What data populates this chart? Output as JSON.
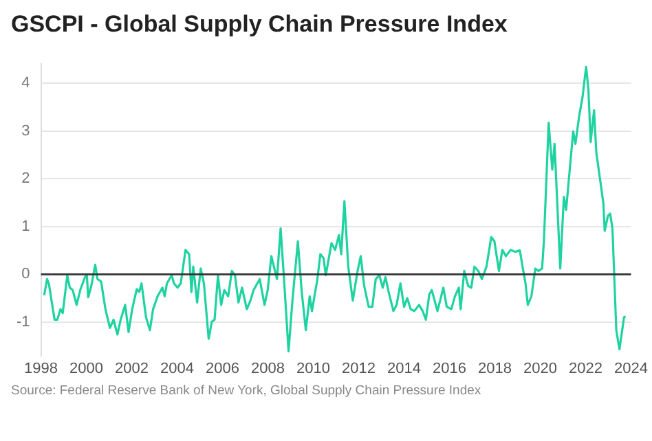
{
  "chart_data": {
    "type": "line",
    "title": "GSCPI - Global Supply Chain Pressure Index",
    "annotations": [
      "Source: Federal Reserve Bank of New York, Global Supply Chain Pressure Index"
    ],
    "x": [
      1998.14,
      1998.27,
      1998.35,
      1998.6,
      1998.72,
      1998.86,
      1998.96,
      1999.16,
      1999.27,
      1999.4,
      1999.57,
      1999.73,
      1999.94,
      2000.02,
      2000.08,
      2000.22,
      2000.39,
      2000.49,
      2000.65,
      2000.84,
      2001.04,
      2001.2,
      2001.37,
      2001.51,
      2001.71,
      2001.86,
      2002.02,
      2002.22,
      2002.33,
      2002.43,
      2002.63,
      2002.8,
      2002.94,
      2003.14,
      2003.35,
      2003.45,
      2003.55,
      2003.76,
      2003.86,
      2004.02,
      2004.16,
      2004.37,
      2004.53,
      2004.63,
      2004.71,
      2004.88,
      2005.04,
      2005.18,
      2005.39,
      2005.53,
      2005.65,
      2005.8,
      2005.94,
      2006.08,
      2006.25,
      2006.41,
      2006.55,
      2006.7,
      2006.86,
      2007.07,
      2007.23,
      2007.37,
      2007.64,
      2007.85,
      2007.99,
      2008.15,
      2008.4,
      2008.56,
      2008.71,
      2008.91,
      2009.08,
      2009.32,
      2009.49,
      2009.67,
      2009.84,
      2009.94,
      2010.18,
      2010.31,
      2010.45,
      2010.55,
      2010.8,
      2010.96,
      2011.13,
      2011.23,
      2011.37,
      2011.54,
      2011.74,
      2011.95,
      2012.09,
      2012.24,
      2012.44,
      2012.6,
      2012.75,
      2012.91,
      2013.06,
      2013.18,
      2013.32,
      2013.53,
      2013.67,
      2013.84,
      2014.0,
      2014.14,
      2014.29,
      2014.45,
      2014.66,
      2014.82,
      2014.96,
      2015.11,
      2015.22,
      2015.47,
      2015.73,
      2015.88,
      2016.08,
      2016.24,
      2016.41,
      2016.49,
      2016.65,
      2016.82,
      2016.96,
      2017.1,
      2017.27,
      2017.43,
      2017.63,
      2017.84,
      2017.98,
      2018.18,
      2018.33,
      2018.49,
      2018.69,
      2018.9,
      2019.1,
      2019.22,
      2019.35,
      2019.45,
      2019.61,
      2019.78,
      2019.92,
      2020.08,
      2020.16,
      2020.37,
      2020.53,
      2020.63,
      2020.88,
      2021.04,
      2021.14,
      2021.45,
      2021.55,
      2021.71,
      2021.86,
      2022.02,
      2022.12,
      2022.22,
      2022.37,
      2022.47,
      2022.78,
      2022.84,
      2022.98,
      2023.08,
      2023.18,
      2023.35,
      2023.49,
      2023.69,
      2023.76
    ],
    "series": [
      {
        "color": "#1fd3a1",
        "values": [
          -0.44,
          -0.1,
          -0.2,
          -0.95,
          -0.95,
          -0.73,
          -0.81,
          -0.02,
          -0.28,
          -0.33,
          -0.64,
          -0.33,
          -0.06,
          0,
          -0.48,
          -0.24,
          0.2,
          -0.1,
          -0.15,
          -0.73,
          -1.12,
          -0.95,
          -1.26,
          -0.95,
          -0.64,
          -1.21,
          -0.73,
          -0.31,
          -0.37,
          -0.19,
          -0.9,
          -1.17,
          -0.73,
          -0.46,
          -0.28,
          -0.46,
          -0.19,
          -0.02,
          -0.19,
          -0.28,
          -0.19,
          0.51,
          0.42,
          -0.37,
          0.16,
          -0.59,
          0.12,
          -0.19,
          -1.35,
          -0.99,
          -0.95,
          -0.02,
          -0.64,
          -0.33,
          -0.46,
          0.07,
          -0.02,
          -0.59,
          -0.28,
          -0.73,
          -0.55,
          -0.33,
          -0.1,
          -0.64,
          -0.33,
          0.38,
          -0.1,
          0.96,
          -0.1,
          -1.61,
          -0.55,
          0.69,
          -0.37,
          -1.17,
          -0.46,
          -0.77,
          -0.1,
          0.42,
          0.34,
          -0.02,
          0.65,
          0.51,
          0.82,
          0.42,
          1.53,
          0.16,
          -0.55,
          0.07,
          0.38,
          -0.24,
          -0.68,
          -0.68,
          -0.1,
          -0.02,
          -0.28,
          -0.06,
          -0.37,
          -0.77,
          -0.64,
          -0.19,
          -0.68,
          -0.5,
          -0.73,
          -0.77,
          -0.64,
          -0.77,
          -0.95,
          -0.42,
          -0.33,
          -0.77,
          -0.28,
          -0.68,
          -0.73,
          -0.46,
          -0.28,
          -0.73,
          0.07,
          -0.24,
          -0.28,
          0.16,
          0.07,
          -0.1,
          0.16,
          0.78,
          0.69,
          0.07,
          0.51,
          0.38,
          0.51,
          0.47,
          0.5,
          0.16,
          -0.19,
          -0.64,
          -0.46,
          0.12,
          0.07,
          0.12,
          0.69,
          3.17,
          2.19,
          2.73,
          0.12,
          1.62,
          1.35,
          2.99,
          2.73,
          3.3,
          3.7,
          4.34,
          3.88,
          2.77,
          3.43,
          2.55,
          1.49,
          0.91,
          1.22,
          1.27,
          0.96,
          -1.17,
          -1.57,
          -0.9,
          -0.88
        ]
      }
    ],
    "xlim": [
      1998,
      2024
    ],
    "xticks": [
      1998,
      2000,
      2002,
      2004,
      2006,
      2008,
      2010,
      2012,
      2014,
      2016,
      2018,
      2020,
      2022,
      2024
    ],
    "ylim": [
      -1.7,
      4.4
    ],
    "yticks": [
      -1,
      0,
      1,
      2,
      3,
      4
    ],
    "ref_lines": [
      {
        "axis": "y",
        "value": 0,
        "color": "#333333"
      }
    ],
    "grid": "y",
    "legend": false,
    "marker": "none",
    "line_style": "solid"
  }
}
